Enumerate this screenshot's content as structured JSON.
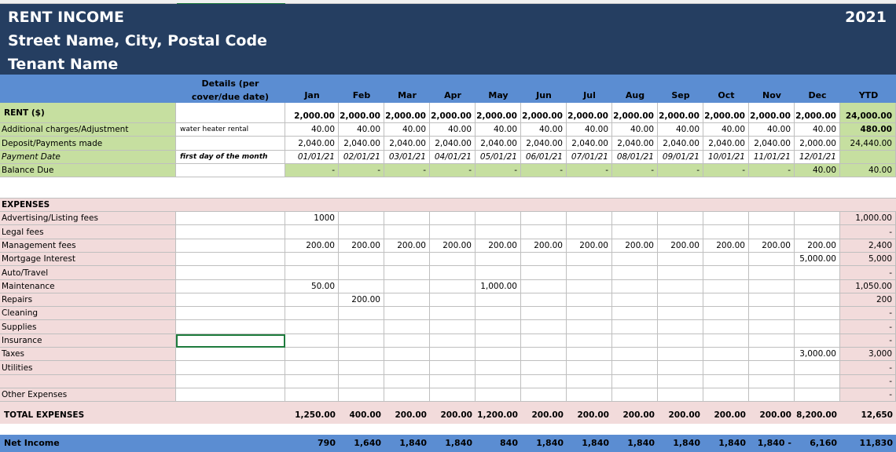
{
  "header": {
    "title": "RENT INCOME",
    "address": "Street Name, City, Postal Code",
    "tenant": "Tenant Name",
    "year": "2021"
  },
  "columns": {
    "details": "Details (per cover/due date)",
    "months": [
      "Jan",
      "Feb",
      "Mar",
      "Apr",
      "May",
      "Jun",
      "Jul",
      "Aug",
      "Sep",
      "Oct",
      "Nov",
      "Dec"
    ],
    "ytd": "YTD"
  },
  "income_rows": [
    {
      "label": "RENT ($)",
      "detail": "",
      "values": [
        "2,000.00",
        "2,000.00",
        "2,000.00",
        "2,000.00",
        "2,000.00",
        "2,000.00",
        "2,000.00",
        "2,000.00",
        "2,000.00",
        "2,000.00",
        "2,000.00",
        "2,000.00"
      ],
      "ytd": "24,000.00"
    },
    {
      "label": "Additional charges/Adjustment",
      "detail": "water heater rental",
      "values": [
        "40.00",
        "40.00",
        "40.00",
        "40.00",
        "40.00",
        "40.00",
        "40.00",
        "40.00",
        "40.00",
        "40.00",
        "40.00",
        "40.00"
      ],
      "ytd": "480.00"
    },
    {
      "label": "Deposit/Payments made",
      "detail": "",
      "values": [
        "2,040.00",
        "2,040.00",
        "2,040.00",
        "2,040.00",
        "2,040.00",
        "2,040.00",
        "2,040.00",
        "2,040.00",
        "2,040.00",
        "2,040.00",
        "2,040.00",
        "2,000.00"
      ],
      "ytd": "24,440.00"
    },
    {
      "label": "Payment Date",
      "detail": "first day of the month",
      "values": [
        "01/01/21",
        "02/01/21",
        "03/01/21",
        "04/01/21",
        "05/01/21",
        "06/01/21",
        "07/01/21",
        "08/01/21",
        "09/01/21",
        "10/01/21",
        "11/01/21",
        "12/01/21"
      ],
      "ytd": ""
    },
    {
      "label": "Balance Due",
      "detail": "",
      "values": [
        "-",
        "-",
        "-",
        "-",
        "-",
        "-",
        "-",
        "-",
        "-",
        "-",
        "-",
        "40.00"
      ],
      "ytd": "40.00"
    }
  ],
  "expenses": {
    "heading": "EXPENSES",
    "rows": [
      {
        "label": "Advertising/Listing fees",
        "values": [
          "1000",
          "",
          "",
          "",
          "",
          "",
          "",
          "",
          "",
          "",
          "",
          ""
        ],
        "ytd": "1,000.00"
      },
      {
        "label": "Legal fees",
        "values": [
          "",
          "",
          "",
          "",
          "",
          "",
          "",
          "",
          "",
          "",
          "",
          ""
        ],
        "ytd": "-"
      },
      {
        "label": "Management fees",
        "values": [
          "200.00",
          "200.00",
          "200.00",
          "200.00",
          "200.00",
          "200.00",
          "200.00",
          "200.00",
          "200.00",
          "200.00",
          "200.00",
          "200.00"
        ],
        "ytd": "2,400"
      },
      {
        "label": "Mortgage Interest",
        "values": [
          "",
          "",
          "",
          "",
          "",
          "",
          "",
          "",
          "",
          "",
          "",
          "5,000.00"
        ],
        "ytd": "5,000"
      },
      {
        "label": "Auto/Travel",
        "values": [
          "",
          "",
          "",
          "",
          "",
          "",
          "",
          "",
          "",
          "",
          "",
          ""
        ],
        "ytd": "-"
      },
      {
        "label": "Maintenance",
        "values": [
          "50.00",
          "",
          "",
          "",
          "1,000.00",
          "",
          "",
          "",
          "",
          "",
          "",
          ""
        ],
        "ytd": "1,050.00"
      },
      {
        "label": "Repairs",
        "values": [
          "",
          "200.00",
          "",
          "",
          "",
          "",
          "",
          "",
          "",
          "",
          "",
          ""
        ],
        "ytd": "200"
      },
      {
        "label": "Cleaning",
        "values": [
          "",
          "",
          "",
          "",
          "",
          "",
          "",
          "",
          "",
          "",
          "",
          ""
        ],
        "ytd": "-"
      },
      {
        "label": "Supplies",
        "values": [
          "",
          "",
          "",
          "",
          "",
          "",
          "",
          "",
          "",
          "",
          "",
          ""
        ],
        "ytd": "-"
      },
      {
        "label": "Insurance",
        "values": [
          "",
          "",
          "",
          "",
          "",
          "",
          "",
          "",
          "",
          "",
          "",
          ""
        ],
        "ytd": "-"
      },
      {
        "label": "Taxes",
        "values": [
          "",
          "",
          "",
          "",
          "",
          "",
          "",
          "",
          "",
          "",
          "",
          "3,000.00"
        ],
        "ytd": "3,000"
      },
      {
        "label": "Utilities",
        "values": [
          "",
          "",
          "",
          "",
          "",
          "",
          "",
          "",
          "",
          "",
          "",
          ""
        ],
        "ytd": "-"
      },
      {
        "label": "",
        "values": [
          "",
          "",
          "",
          "",
          "",
          "",
          "",
          "",
          "",
          "",
          "",
          ""
        ],
        "ytd": "-"
      },
      {
        "label": "Other Expenses",
        "values": [
          "",
          "",
          "",
          "",
          "",
          "",
          "",
          "",
          "",
          "",
          "",
          ""
        ],
        "ytd": "-"
      }
    ],
    "total": {
      "label": "TOTAL EXPENSES",
      "values": [
        "1,250.00",
        "400.00",
        "200.00",
        "200.00",
        "1,200.00",
        "200.00",
        "200.00",
        "200.00",
        "200.00",
        "200.00",
        "200.00",
        "8,200.00"
      ],
      "ytd": "12,650"
    }
  },
  "net_income": {
    "label": "Net Income",
    "values": [
      "790",
      "1,640",
      "1,840",
      "1,840",
      "840",
      "1,840",
      "1,840",
      "1,840",
      "1,840",
      "1,840",
      "1,840 -",
      "6,160"
    ],
    "ytd": "11,830"
  }
}
